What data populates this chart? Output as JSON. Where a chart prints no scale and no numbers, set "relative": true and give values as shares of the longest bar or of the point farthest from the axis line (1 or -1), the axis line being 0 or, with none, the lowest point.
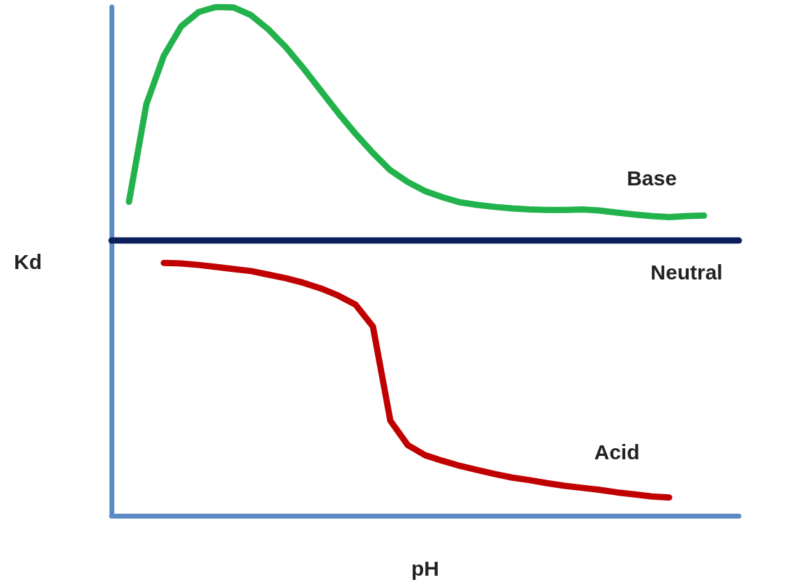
{
  "chart_data": {
    "type": "line",
    "relative": true,
    "xlabel": "pH",
    "ylabel": "Kd",
    "grid": false,
    "legend": false,
    "marker": "none",
    "line_style": "solid",
    "categories": [
      null,
      null,
      null,
      null,
      null,
      null,
      null,
      null,
      null,
      null,
      null,
      null,
      null,
      null,
      null,
      null,
      null,
      null,
      null,
      null,
      null,
      null,
      null,
      null,
      null,
      null,
      null,
      null,
      null,
      null,
      null,
      null,
      null,
      null,
      null,
      null,
      null
    ],
    "series": [
      {
        "name": "Base",
        "color": "#22b24c",
        "values": [
          null,
          0.617,
          0.809,
          0.904,
          0.962,
          0.99,
          1.0,
          0.999,
          0.984,
          0.956,
          0.921,
          0.88,
          0.836,
          0.792,
          0.751,
          0.713,
          0.679,
          0.656,
          0.638,
          0.626,
          0.616,
          0.611,
          0.607,
          0.604,
          0.602,
          0.601,
          0.601,
          0.602,
          0.6,
          0.596,
          0.592,
          0.589,
          0.587,
          0.589,
          0.59,
          null,
          null
        ]
      },
      {
        "name": "Neutral",
        "color": "#0a1f5c",
        "values": [
          0.541,
          0.541,
          0.541,
          0.541,
          0.541,
          0.541,
          0.541,
          0.541,
          0.541,
          0.541,
          0.541,
          0.541,
          0.541,
          0.541,
          0.541,
          0.541,
          0.541,
          0.541,
          0.541,
          0.541,
          0.541,
          0.541,
          0.541,
          0.541,
          0.541,
          0.541,
          0.541,
          0.541,
          0.541,
          0.541,
          0.541,
          0.541,
          0.541,
          0.541,
          0.541,
          0.541,
          0.541
        ]
      },
      {
        "name": "Acid",
        "color": "#c00000",
        "values": [
          null,
          null,
          null,
          0.497,
          0.496,
          0.493,
          0.489,
          0.485,
          0.481,
          0.474,
          0.467,
          0.458,
          0.447,
          0.433,
          0.415,
          0.372,
          0.187,
          0.139,
          0.119,
          0.108,
          0.098,
          0.09,
          0.082,
          0.075,
          0.07,
          0.064,
          0.059,
          0.055,
          0.051,
          0.046,
          0.042,
          0.038,
          0.036,
          null,
          null,
          null,
          null
        ]
      }
    ]
  }
}
